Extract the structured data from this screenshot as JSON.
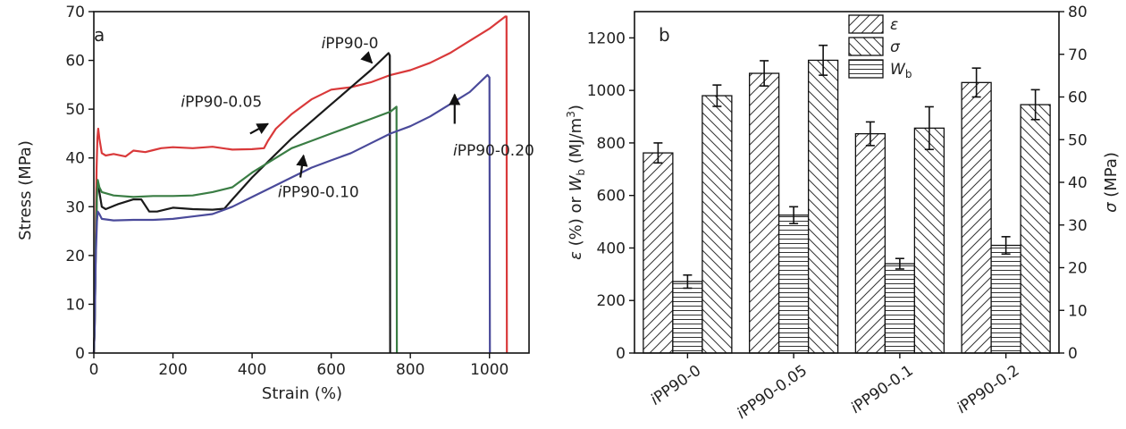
{
  "chart_data": [
    {
      "type": "line",
      "panel_label": "a",
      "xlabel": "Strain (%)",
      "ylabel": "Stress (MPa)",
      "xlim": [
        0,
        1100
      ],
      "ylim": [
        0,
        70
      ],
      "xticks": [
        0,
        200,
        400,
        600,
        800,
        1000
      ],
      "yticks": [
        0,
        10,
        20,
        30,
        40,
        50,
        60,
        70
      ],
      "grid": false,
      "series": [
        {
          "name": "iPP90-0.05",
          "color": "#d9393a",
          "points": [
            [
              0,
              0
            ],
            [
              2,
              5
            ],
            [
              5,
              25
            ],
            [
              7,
              38
            ],
            [
              9,
              44
            ],
            [
              11,
              46
            ],
            [
              14,
              44
            ],
            [
              20,
              41
            ],
            [
              30,
              40.5
            ],
            [
              50,
              40.8
            ],
            [
              80,
              40.3
            ],
            [
              100,
              41.5
            ],
            [
              130,
              41.2
            ],
            [
              150,
              41.6
            ],
            [
              170,
              42
            ],
            [
              200,
              42.2
            ],
            [
              250,
              42
            ],
            [
              300,
              42.3
            ],
            [
              350,
              41.7
            ],
            [
              400,
              41.8
            ],
            [
              430,
              42
            ],
            [
              440,
              43.5
            ],
            [
              460,
              46
            ],
            [
              500,
              49
            ],
            [
              550,
              52
            ],
            [
              600,
              54
            ],
            [
              650,
              54.5
            ],
            [
              700,
              55.5
            ],
            [
              750,
              57
            ],
            [
              800,
              58
            ],
            [
              850,
              59.5
            ],
            [
              900,
              61.5
            ],
            [
              950,
              64
            ],
            [
              1000,
              66.5
            ],
            [
              1040,
              69
            ],
            [
              1043,
              69
            ],
            [
              1044,
              0
            ]
          ]
        },
        {
          "name": "iPP90-0",
          "color": "#1a1a1a",
          "points": [
            [
              0,
              0
            ],
            [
              2,
              5
            ],
            [
              5,
              22
            ],
            [
              8,
              33
            ],
            [
              10,
              35
            ],
            [
              14,
              33
            ],
            [
              20,
              30
            ],
            [
              30,
              29.5
            ],
            [
              60,
              30.5
            ],
            [
              100,
              31.5
            ],
            [
              120,
              31.5
            ],
            [
              140,
              29
            ],
            [
              160,
              29
            ],
            [
              200,
              29.8
            ],
            [
              250,
              29.5
            ],
            [
              300,
              29.4
            ],
            [
              330,
              29.6
            ],
            [
              350,
              31.5
            ],
            [
              400,
              36
            ],
            [
              450,
              40
            ],
            [
              500,
              44
            ],
            [
              550,
              47.5
            ],
            [
              600,
              51
            ],
            [
              650,
              54.5
            ],
            [
              700,
              58
            ],
            [
              745,
              61.5
            ],
            [
              748,
              61
            ],
            [
              749,
              0
            ]
          ]
        },
        {
          "name": "iPP90-0.10",
          "color": "#3a7d44",
          "points": [
            [
              0,
              0
            ],
            [
              2,
              5
            ],
            [
              5,
              22
            ],
            [
              8,
              32
            ],
            [
              10,
              35.5
            ],
            [
              14,
              34
            ],
            [
              20,
              33
            ],
            [
              50,
              32.3
            ],
            [
              100,
              32
            ],
            [
              150,
              32.2
            ],
            [
              200,
              32.2
            ],
            [
              250,
              32.3
            ],
            [
              300,
              33
            ],
            [
              350,
              34
            ],
            [
              400,
              37
            ],
            [
              450,
              39.5
            ],
            [
              500,
              42
            ],
            [
              550,
              43.5
            ],
            [
              600,
              45
            ],
            [
              650,
              46.5
            ],
            [
              700,
              48
            ],
            [
              750,
              49.5
            ],
            [
              765,
              50.5
            ],
            [
              766,
              0
            ]
          ]
        },
        {
          "name": "iPP90-0.20",
          "color": "#4a4a9a",
          "points": [
            [
              0,
              0
            ],
            [
              2,
              5
            ],
            [
              5,
              20
            ],
            [
              8,
              27
            ],
            [
              10,
              29
            ],
            [
              14,
              28.5
            ],
            [
              20,
              27.5
            ],
            [
              50,
              27.2
            ],
            [
              100,
              27.3
            ],
            [
              150,
              27.3
            ],
            [
              200,
              27.5
            ],
            [
              250,
              28
            ],
            [
              300,
              28.5
            ],
            [
              350,
              30
            ],
            [
              400,
              32
            ],
            [
              450,
              34
            ],
            [
              500,
              36
            ],
            [
              550,
              38
            ],
            [
              600,
              39.5
            ],
            [
              650,
              41
            ],
            [
              700,
              43
            ],
            [
              750,
              45
            ],
            [
              800,
              46.5
            ],
            [
              850,
              48.5
            ],
            [
              900,
              51
            ],
            [
              950,
              53.5
            ],
            [
              995,
              57
            ],
            [
              1000,
              56.5
            ],
            [
              1001,
              0
            ]
          ]
        }
      ],
      "annotations": [
        {
          "text": "iPP90-0",
          "italic_prefix": "i",
          "at": [
            575,
            62.5
          ],
          "arrow_from": [
            685,
            61
          ],
          "arrow_to": [
            703,
            59.5
          ]
        },
        {
          "text": "iPP90-0.05",
          "italic_prefix": "i",
          "at": [
            220,
            50.5
          ],
          "arrow_from": [
            395,
            45
          ],
          "arrow_to": [
            440,
            47
          ]
        },
        {
          "text": "iPP90-0.10",
          "italic_prefix": "i",
          "at": [
            465,
            32
          ],
          "arrow_from": [
            522,
            36
          ],
          "arrow_to": [
            530,
            40.5
          ]
        },
        {
          "text": "iPP90-0.20",
          "italic_prefix": "i",
          "at": [
            908,
            40.5
          ],
          "arrow_from": [
            912,
            47
          ],
          "arrow_to": [
            912,
            53
          ]
        }
      ]
    },
    {
      "type": "bar",
      "panel_label": "b",
      "categories": [
        "iPP90-0",
        "iPP90-0.05",
        "iPP90-0.1",
        "iPP90-0.2"
      ],
      "category_italic_prefix": "i",
      "ylabel_left": "ε (%) or Wb (MJ/m3)",
      "ylabel_left_parts": {
        "eps": "ε",
        "mid": " (%) or ",
        "w": "W",
        "w_sub": "b",
        "unit": " (MJ/m",
        "unit_sup": "3",
        "close": ")"
      },
      "ylabel_right": "σ (MPa)",
      "ylabel_right_parts": {
        "sigma": "σ",
        "unit": " (MPa)"
      },
      "ylim_left": [
        0,
        1300
      ],
      "ylim_right": [
        0,
        80
      ],
      "yticks_left": [
        0,
        200,
        400,
        600,
        800,
        1000,
        1200
      ],
      "yticks_right": [
        0,
        10,
        20,
        30,
        40,
        50,
        60,
        70,
        80
      ],
      "legend_position": "top-center",
      "series": [
        {
          "name": "ε",
          "axis": "left",
          "hatch": "diag-forward",
          "values": [
            762,
            1065,
            835,
            1030
          ],
          "errors": [
            38,
            48,
            45,
            55
          ]
        },
        {
          "name": "Wb",
          "name_base": "W",
          "name_sub": "b",
          "axis": "left",
          "hatch": "horizontal",
          "values": [
            272,
            525,
            340,
            410
          ],
          "errors": [
            25,
            32,
            20,
            33
          ]
        },
        {
          "name": "σ",
          "axis": "right",
          "hatch": "diag-back",
          "values": [
            60.3,
            68.6,
            52.7,
            58.2
          ],
          "errors": [
            2.5,
            3.5,
            5,
            3.5
          ]
        }
      ],
      "legend": [
        {
          "series": "ε",
          "hatch": "diag-forward",
          "label": "ε"
        },
        {
          "series": "σ",
          "hatch": "diag-back",
          "label": "σ"
        },
        {
          "series": "Wb",
          "hatch": "horizontal",
          "label_base": "W",
          "label_sub": "b"
        }
      ]
    }
  ]
}
